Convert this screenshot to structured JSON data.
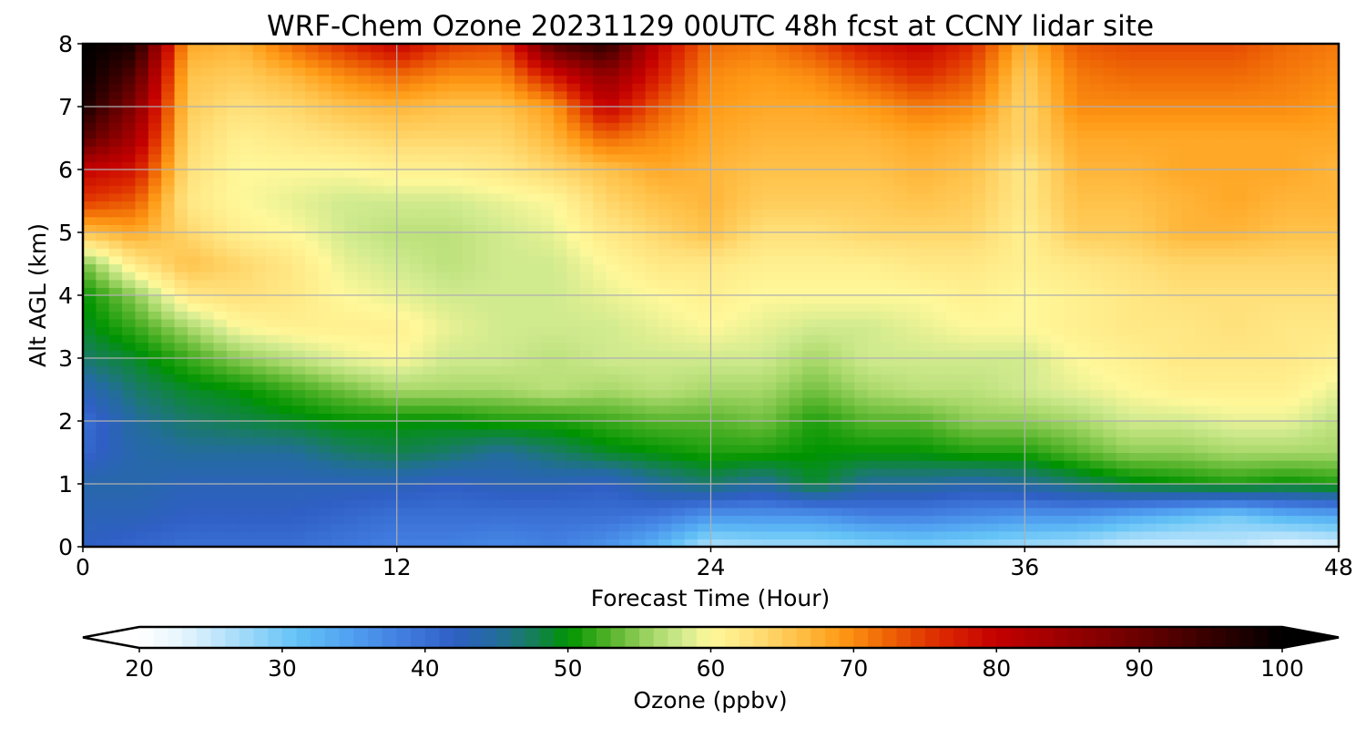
{
  "chart_data": {
    "type": "heatmap",
    "title": "WRF-Chem Ozone  20231129 00UTC 48h fcst at CCNY lidar site",
    "xlabel": "Forecast Time (Hour)",
    "ylabel": "Alt AGL (km)",
    "xlim": [
      0,
      48
    ],
    "ylim": [
      0,
      8
    ],
    "xticks": [
      0,
      12,
      24,
      36,
      48
    ],
    "yticks": [
      0,
      1,
      2,
      3,
      4,
      5,
      6,
      7,
      8
    ],
    "grid": true,
    "colorbar": {
      "label": "Ozone  (ppbv)",
      "range": [
        20,
        100
      ],
      "ticks": [
        20,
        30,
        40,
        50,
        60,
        70,
        80,
        90,
        100
      ],
      "extend": "both",
      "orientation": "horizontal",
      "anchors": [
        {
          "v": 20,
          "c": "#ffffff"
        },
        {
          "v": 23,
          "c": "#e6f5fd"
        },
        {
          "v": 27,
          "c": "#a6dcfa"
        },
        {
          "v": 31,
          "c": "#64c3f6"
        },
        {
          "v": 35,
          "c": "#4f9ef0"
        },
        {
          "v": 39,
          "c": "#3f78dc"
        },
        {
          "v": 42,
          "c": "#2f5fc4"
        },
        {
          "v": 45,
          "c": "#236c9e"
        },
        {
          "v": 47,
          "c": "#1a7a6a"
        },
        {
          "v": 49,
          "c": "#0a8a2a"
        },
        {
          "v": 50,
          "c": "#009300"
        },
        {
          "v": 53,
          "c": "#56b42b"
        },
        {
          "v": 56,
          "c": "#a8d86a"
        },
        {
          "v": 58,
          "c": "#d0ea8e"
        },
        {
          "v": 60,
          "c": "#fff89a"
        },
        {
          "v": 63,
          "c": "#ffe07a"
        },
        {
          "v": 66,
          "c": "#ffc24a"
        },
        {
          "v": 69,
          "c": "#ff9b16"
        },
        {
          "v": 72,
          "c": "#f06a06"
        },
        {
          "v": 76,
          "c": "#dd2a00"
        },
        {
          "v": 80,
          "c": "#c40000"
        },
        {
          "v": 85,
          "c": "#990000"
        },
        {
          "v": 90,
          "c": "#6a0000"
        },
        {
          "v": 95,
          "c": "#350000"
        },
        {
          "v": 100,
          "c": "#000000"
        }
      ]
    },
    "times": [
      0,
      2,
      4,
      6,
      8,
      10,
      12,
      14,
      16,
      18,
      20,
      22,
      24,
      26,
      28,
      30,
      32,
      34,
      36,
      38,
      40,
      42,
      44,
      46,
      48
    ],
    "altitudes_km": [
      0,
      0.5,
      1,
      1.5,
      2,
      2.5,
      3,
      3.5,
      4,
      4.5,
      5,
      5.5,
      6,
      6.5,
      7,
      7.5,
      8
    ],
    "ozone_ppbv": [
      [
        42,
        41,
        40,
        40,
        40,
        39,
        38,
        38,
        37,
        38,
        36,
        32,
        26,
        27,
        27,
        28,
        29,
        28,
        27,
        26,
        24,
        24,
        25,
        22,
        23
      ],
      [
        43,
        43,
        42,
        42,
        42,
        41,
        40,
        40,
        40,
        40,
        40,
        39,
        36,
        36,
        36,
        38,
        38,
        37,
        36,
        36,
        34,
        32,
        30,
        33,
        34
      ],
      [
        44,
        44,
        43,
        43,
        43,
        43,
        43,
        42,
        43,
        43,
        42,
        45,
        47,
        45,
        49,
        45,
        45,
        44,
        45,
        47,
        49,
        50,
        51,
        50,
        51
      ],
      [
        41,
        44,
        45,
        45,
        45,
        47,
        48,
        47,
        45,
        47,
        49,
        50,
        51,
        51,
        50,
        50,
        50,
        51,
        51,
        53,
        55,
        55,
        56,
        56,
        56
      ],
      [
        40,
        45,
        47,
        48,
        49,
        50,
        50,
        50,
        51,
        51,
        52,
        53,
        53,
        54,
        51,
        53,
        53,
        55,
        55,
        56,
        58,
        58,
        59,
        59,
        57
      ],
      [
        43,
        47,
        49,
        50,
        52,
        54,
        56,
        56,
        56,
        57,
        56,
        57,
        56,
        56,
        54,
        56,
        57,
        57,
        58,
        59,
        60,
        61,
        61,
        61,
        59
      ],
      [
        47,
        49,
        52,
        55,
        57,
        59,
        60,
        58,
        58,
        57,
        58,
        58,
        58,
        58,
        56,
        58,
        58,
        58,
        58,
        60,
        61,
        62,
        62,
        62,
        61
      ],
      [
        49,
        52,
        56,
        60,
        61,
        61,
        61,
        59,
        58,
        58,
        58,
        59,
        60,
        59,
        58,
        58,
        59,
        60,
        60,
        61,
        62,
        62,
        63,
        62,
        62
      ],
      [
        50,
        55,
        62,
        63,
        62,
        60,
        59,
        58,
        58,
        58,
        59,
        60,
        61,
        60,
        60,
        60,
        60,
        61,
        60,
        61,
        62,
        63,
        63,
        63,
        63
      ],
      [
        54,
        62,
        66,
        64,
        62,
        59,
        58,
        57,
        58,
        58,
        60,
        62,
        62,
        61,
        61,
        61,
        62,
        62,
        61,
        62,
        63,
        64,
        64,
        64,
        64
      ],
      [
        66,
        68,
        64,
        61,
        60,
        58,
        57,
        57,
        58,
        59,
        62,
        64,
        66,
        63,
        63,
        64,
        64,
        64,
        61,
        65,
        65,
        67,
        67,
        66,
        66
      ],
      [
        75,
        73,
        62,
        60,
        59,
        58,
        58,
        58,
        59,
        60,
        64,
        66,
        67,
        65,
        65,
        65,
        66,
        65,
        62,
        66,
        66,
        67,
        68,
        67,
        67
      ],
      [
        80,
        78,
        63,
        60,
        60,
        60,
        61,
        61,
        62,
        64,
        66,
        68,
        67,
        66,
        66,
        66,
        67,
        66,
        62,
        67,
        67,
        68,
        68,
        68,
        67
      ],
      [
        92,
        83,
        64,
        61,
        62,
        63,
        64,
        64,
        64,
        67,
        72,
        70,
        68,
        67,
        67,
        67,
        68,
        67,
        64,
        68,
        68,
        68,
        68,
        68,
        68
      ],
      [
        98,
        87,
        65,
        63,
        64,
        66,
        67,
        66,
        66,
        69,
        80,
        73,
        69,
        68,
        68,
        69,
        71,
        70,
        64,
        70,
        70,
        70,
        70,
        70,
        69
      ],
      [
        100,
        92,
        66,
        65,
        67,
        70,
        72,
        70,
        70,
        78,
        86,
        77,
        70,
        69,
        70,
        73,
        76,
        73,
        65,
        71,
        72,
        72,
        72,
        71,
        70
      ],
      [
        100,
        98,
        68,
        67,
        72,
        76,
        80,
        75,
        74,
        92,
        96,
        80,
        72,
        71,
        74,
        78,
        80,
        76,
        67,
        73,
        74,
        74,
        74,
        72,
        71
      ]
    ]
  }
}
